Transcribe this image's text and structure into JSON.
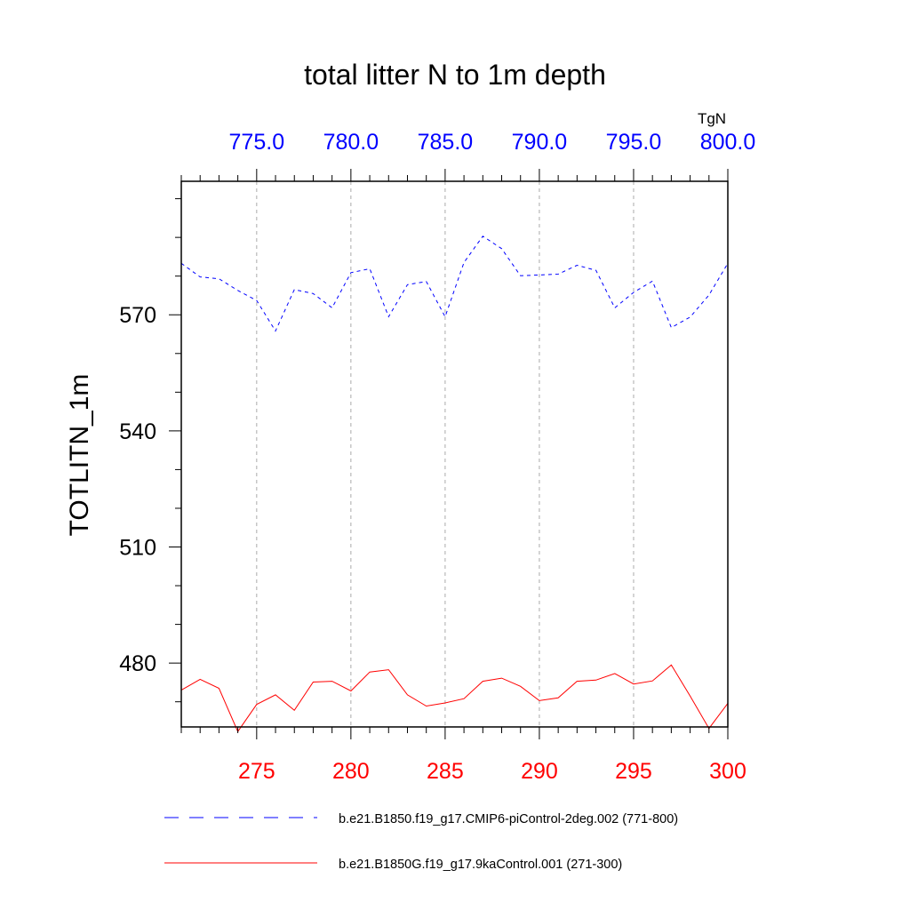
{
  "chart_data": {
    "type": "line",
    "title": "total litter N to 1m depth",
    "ylabel": "TOTLITN_1m",
    "top_axis_units": "TgN",
    "ylim": [
      463.5,
      604.5
    ],
    "yticks": [
      480,
      510,
      540,
      570
    ],
    "ytick_labels": [
      "480",
      "510",
      "540",
      "570"
    ],
    "bottom_axis": {
      "range": [
        271,
        300
      ],
      "ticks": [
        275,
        280,
        285,
        290,
        295,
        300
      ],
      "tick_labels": [
        "275",
        "280",
        "285",
        "290",
        "295",
        "300"
      ],
      "color": "#ff0000"
    },
    "top_axis": {
      "range": [
        771,
        800
      ],
      "ticks": [
        775,
        780,
        785,
        790,
        795,
        800
      ],
      "tick_labels": [
        "775.0",
        "780.0",
        "785.0",
        "790.0",
        "795.0",
        "800.0"
      ],
      "color": "#0000ff"
    },
    "grid": "vertical-dashed",
    "series": [
      {
        "name": "b.e21.B1850.f19_g17.CMIP6-piControl-2deg.002 (771-800)",
        "axis": "top",
        "color": "#0000ff",
        "style": "dashed",
        "x": [
          771,
          772,
          773,
          774,
          775,
          776,
          777,
          778,
          779,
          780,
          781,
          782,
          783,
          784,
          785,
          786,
          787,
          788,
          789,
          790,
          791,
          792,
          793,
          794,
          795,
          796,
          797,
          798,
          799,
          800
        ],
        "values": [
          583.3,
          579.8,
          579.3,
          576.3,
          573.7,
          565.8,
          576.5,
          575.5,
          571.8,
          580.9,
          581.9,
          569.5,
          577.8,
          578.6,
          569.5,
          583.5,
          590.3,
          587.1,
          580.1,
          580.3,
          580.5,
          582.8,
          581.5,
          571.8,
          575.8,
          578.7,
          566.7,
          569.4,
          575.1,
          583.3
        ]
      },
      {
        "name": "b.e21.B1850G.f19_g17.9kaControl.001 (271-300)",
        "axis": "bottom",
        "color": "#ff0000",
        "style": "solid",
        "x": [
          271,
          272,
          273,
          274,
          275,
          276,
          277,
          278,
          279,
          280,
          281,
          282,
          283,
          284,
          285,
          286,
          287,
          288,
          289,
          290,
          291,
          292,
          293,
          294,
          295,
          296,
          297,
          298,
          299,
          300
        ],
        "values": [
          473.0,
          475.8,
          473.5,
          462.3,
          469.3,
          471.8,
          467.8,
          475.1,
          475.3,
          472.8,
          477.7,
          478.3,
          471.8,
          468.9,
          469.7,
          470.8,
          475.3,
          476.1,
          474.0,
          470.3,
          471.0,
          475.3,
          475.6,
          477.3,
          474.6,
          475.4,
          479.5,
          471.5,
          463.1,
          469.6
        ]
      }
    ],
    "legend": {
      "position": "bottom",
      "entries": [
        "b.e21.B1850.f19_g17.CMIP6-piControl-2deg.002 (771-800)",
        "b.e21.B1850G.f19_g17.9kaControl.001 (271-300)"
      ]
    }
  }
}
